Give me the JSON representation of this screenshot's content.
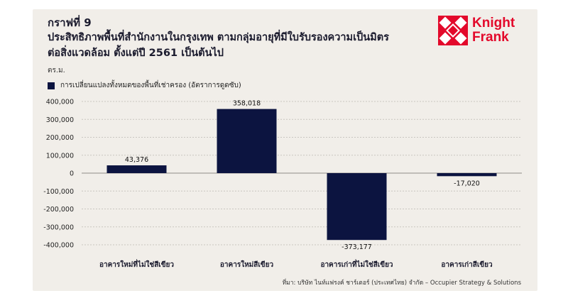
{
  "figure_label": "กราฟที่ 9",
  "title_lines": [
    "ประสิทธิภาพพื้นที่สำนักงานในกรุงเทพ ตามกลุ่มอายุที่มีใบรับรองความเป็นมิตร",
    "ต่อสิ่งแวดล้อม ตั้งแต่ปี 2561 เป็นต้นไป"
  ],
  "unit_label": "ตร.ม.",
  "logo": {
    "line1": "Knight",
    "line2": "Frank",
    "color": "#e3092b"
  },
  "source": "ที่มา: บริษัท ไนท์แฟรงค์ ชาร์เตอร์ (ประเทศไทย) จำกัด – Occupier Strategy & Solutions",
  "colors": {
    "bar": "#0c1440",
    "background": "#f1eee9",
    "grid": "#c9c6c0"
  },
  "chart_data": {
    "type": "bar",
    "categories": [
      "อาคารใหม่ที่ไม่ใช่สีเขียว",
      "อาคารใหม่สีเขียว",
      "อาคารเก่าที่ไม่ใช่สีเขียว",
      "อาคารเก่าสีเขียว"
    ],
    "series": [
      {
        "name": "การเปลี่ยนแปลงทั้งหมดของพื้นที่เช่าครอง (อัตราการดูดซับ)",
        "values": [
          43376,
          358018,
          -373177,
          -17020
        ]
      }
    ],
    "data_labels": [
      "43,376",
      "358,018",
      "-373,177",
      "-17,020"
    ],
    "ylim": [
      -400000,
      400000
    ],
    "yticks": [
      400000,
      300000,
      200000,
      100000,
      0,
      -100000,
      -200000,
      -300000,
      -400000
    ],
    "ytick_labels": [
      "400,000",
      "300,000",
      "200,000",
      "100,000",
      "0",
      "-100,000",
      "-200,000",
      "-300,000",
      "-400,000"
    ],
    "grid": true,
    "legend_position": "top-left"
  }
}
